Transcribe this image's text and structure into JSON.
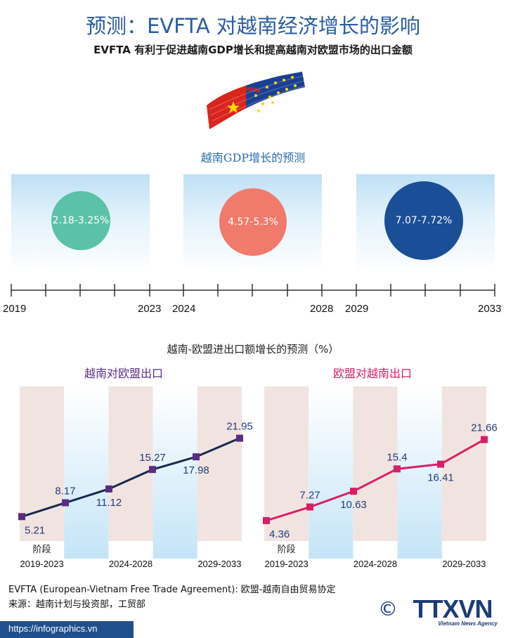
{
  "title": "预测：EVFTA 对越南经济增长的影响",
  "subtitle": "EVFTA 有利于促进越南GDP增长和提高越南对欧盟市场的出口金额",
  "colors": {
    "title": "#2a5d9f",
    "gdp_1": "#5bc1a8",
    "gdp_2": "#f07a6b",
    "gdp_3": "#1a4e96",
    "vn_to_eu": "#5a2d82",
    "eu_to_vn": "#d81f65",
    "line_vn_to_eu": "#16294d"
  },
  "gdp": {
    "title": "越南GDP增长的预测",
    "periods": [
      {
        "start": "2019",
        "end": "2023",
        "value": "2.18-3.25%"
      },
      {
        "start": "2024",
        "end": "2028",
        "value": "4.57-5.3%"
      },
      {
        "start": "2029",
        "end": "2033",
        "value": "7.07-7.72%"
      }
    ]
  },
  "trade": {
    "title": "越南-欧盟进出口额增长的预测（%）"
  },
  "chart_data": [
    {
      "type": "line",
      "title": "越南对欧盟出口",
      "stage_label": "阶段",
      "period_labels": [
        "2019-2023",
        "2024-2028",
        "2029-2033"
      ],
      "values": [
        5.21,
        8.17,
        11.12,
        15.27,
        17.98,
        21.95
      ],
      "point_labels": [
        "5.21",
        "8.17",
        "11.12",
        "15.27",
        "17.98",
        "21.95"
      ],
      "label_position": [
        "below",
        "above",
        "below",
        "above",
        "below",
        "above"
      ],
      "ylim": [
        0,
        30
      ]
    },
    {
      "type": "line",
      "title": "欧盟对越南出口",
      "stage_label": "阶段",
      "period_labels": [
        "2019-2023",
        "2024-2028",
        "2029-2033"
      ],
      "values": [
        4.36,
        7.27,
        10.63,
        15.4,
        16.41,
        21.66
      ],
      "point_labels": [
        "4.36",
        "7.27",
        "10.63",
        "15.4",
        "16.41",
        "21.66"
      ],
      "label_position": [
        "below",
        "above",
        "below",
        "above",
        "below",
        "above"
      ],
      "ylim": [
        0,
        30
      ]
    }
  ],
  "footnote": "EVFTA (European-Vietnam Free Trade Agreement): 欧盟-越南自由贸易协定",
  "source": "来源：越南计划与投资部，工贸部",
  "copyright": "©",
  "logo": {
    "name": "TTXVN",
    "sub": "Vietnam News Agency"
  },
  "url": "https://infographics.vn"
}
